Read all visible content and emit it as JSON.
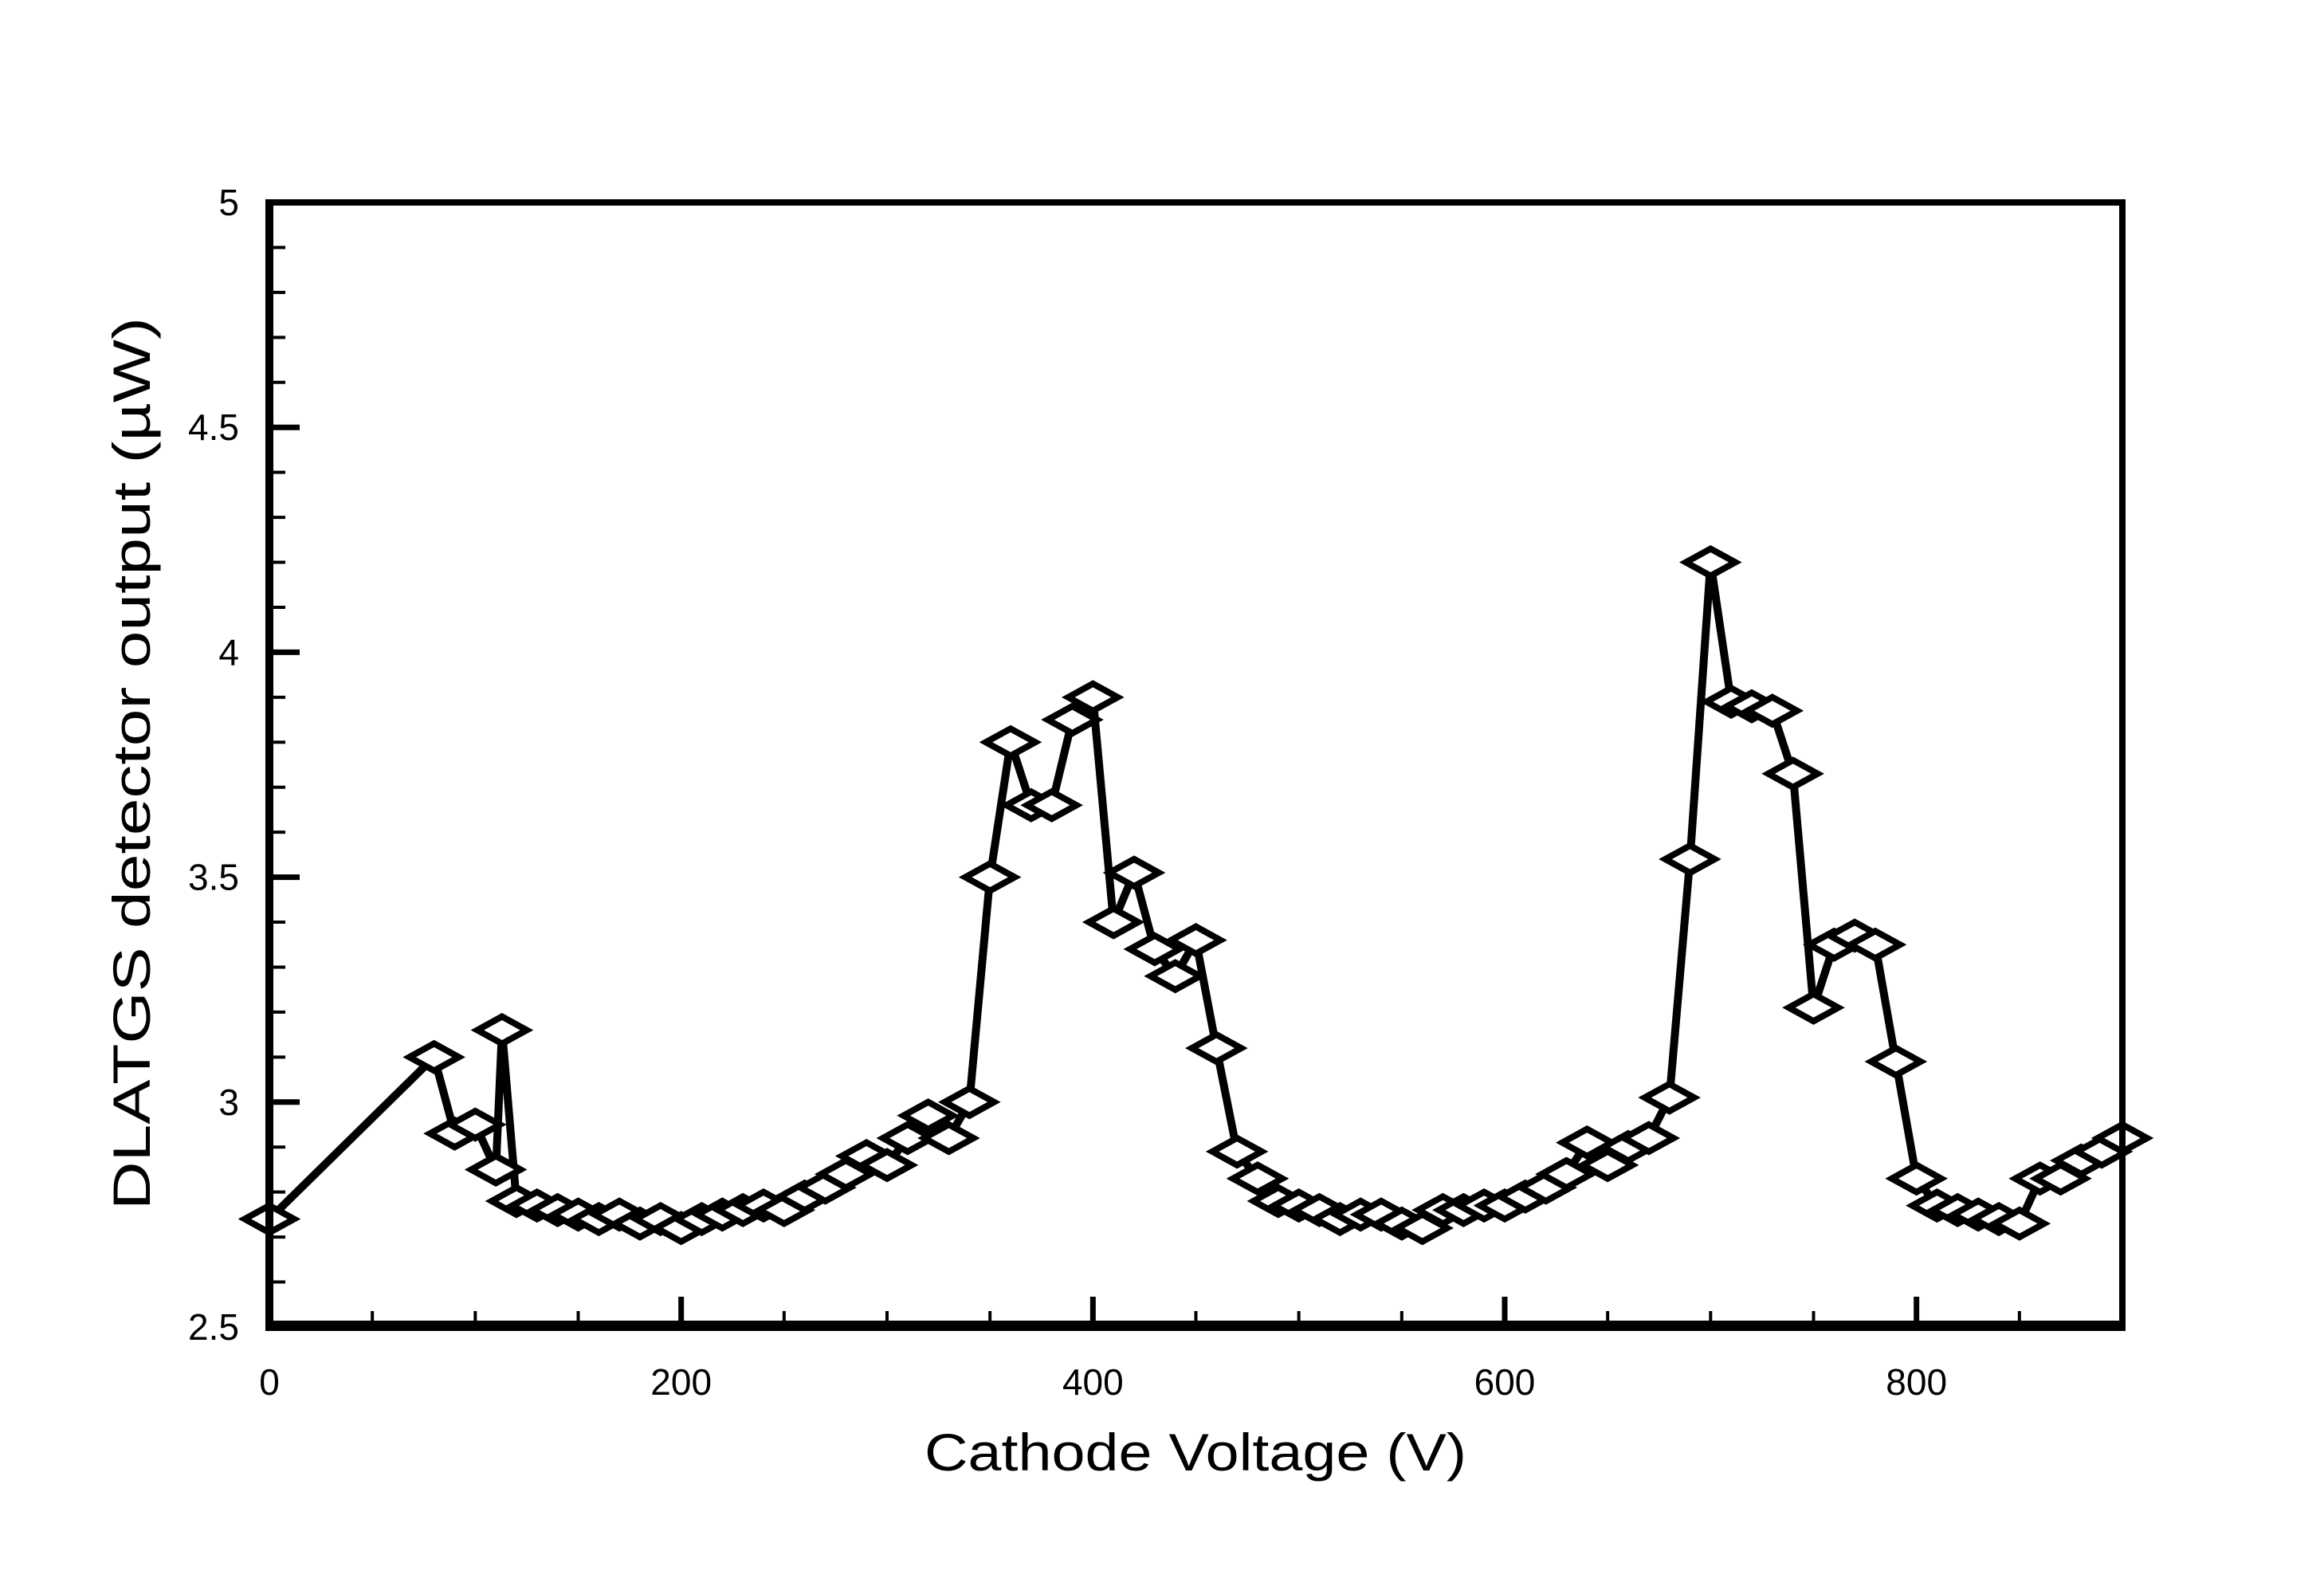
{
  "chart_data": {
    "type": "line",
    "title": "",
    "xlabel": "Cathode Voltage (V)",
    "ylabel": "DLATGS detector output (µW)",
    "xlim": [
      0,
      900
    ],
    "ylim": [
      2.5,
      5
    ],
    "x_major_ticks": [
      0,
      200,
      400,
      600,
      800
    ],
    "x_tick_labels": [
      "0",
      "200",
      "400",
      "600",
      "800"
    ],
    "x_minor_step": 50,
    "y_major_ticks": [
      2.5,
      3,
      3.5,
      4,
      4.5,
      5
    ],
    "y_tick_labels": [
      "2.5",
      "3",
      "3.5",
      "4",
      "4.5",
      "5"
    ],
    "y_minor_step": 0.1,
    "grid": false,
    "legend": null,
    "marker": "open-diamond",
    "line_color": "#000000",
    "marker_fill": "#ffffff",
    "series": [
      {
        "name": "DLATGS detector output",
        "x": [
          0,
          80,
          90,
          100,
          110,
          113,
          120,
          130,
          140,
          150,
          160,
          170,
          180,
          190,
          200,
          210,
          220,
          230,
          240,
          250,
          260,
          270,
          280,
          290,
          300,
          310,
          320,
          330,
          340,
          350,
          360,
          370,
          380,
          390,
          400,
          410,
          420,
          430,
          440,
          450,
          460,
          470,
          480,
          490,
          500,
          510,
          520,
          530,
          540,
          550,
          560,
          570,
          580,
          590,
          600,
          610,
          620,
          630,
          640,
          650,
          660,
          670,
          680,
          690,
          700,
          710,
          720,
          730,
          740,
          750,
          760,
          770,
          780,
          790,
          800,
          810,
          820,
          830,
          840,
          850,
          860,
          870,
          880,
          890,
          900
        ],
        "y": [
          2.74,
          3.1,
          2.93,
          2.95,
          2.85,
          3.16,
          2.78,
          2.77,
          2.76,
          2.75,
          2.74,
          2.75,
          2.73,
          2.74,
          2.72,
          2.74,
          2.75,
          2.76,
          2.77,
          2.76,
          2.79,
          2.81,
          2.84,
          2.88,
          2.86,
          2.92,
          2.97,
          2.92,
          3.0,
          3.5,
          3.8,
          3.66,
          3.66,
          3.85,
          3.9,
          3.4,
          3.51,
          3.34,
          3.28,
          3.36,
          3.12,
          2.89,
          2.83,
          2.78,
          2.77,
          2.76,
          2.74,
          2.75,
          2.75,
          2.73,
          2.72,
          2.76,
          2.76,
          2.77,
          2.77,
          2.79,
          2.81,
          2.84,
          2.91,
          2.86,
          2.9,
          2.92,
          3.01,
          3.54,
          4.2,
          3.89,
          3.88,
          3.87,
          3.73,
          3.21,
          3.35,
          3.37,
          3.35,
          3.09,
          2.83,
          2.77,
          2.76,
          2.75,
          2.74,
          2.73,
          2.83,
          2.83,
          2.87,
          2.89,
          2.92
        ]
      }
    ]
  }
}
